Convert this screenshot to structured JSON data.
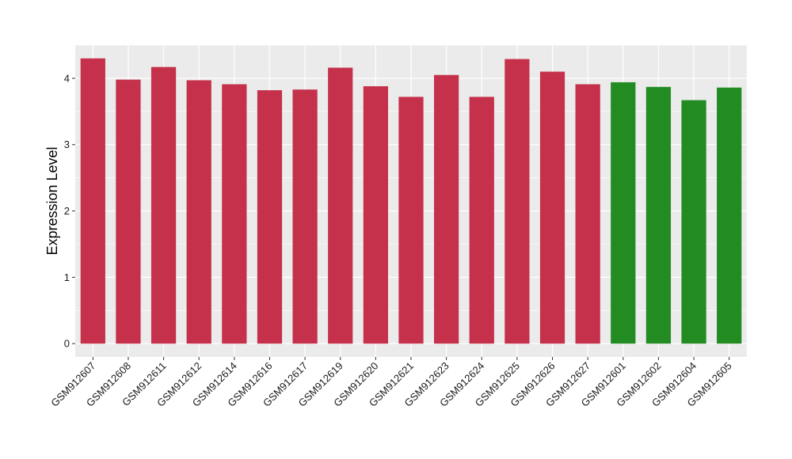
{
  "chart_data": {
    "type": "bar",
    "title": "",
    "xlabel": "",
    "ylabel": "Expression Level",
    "ylim": [
      -0.2,
      4.5
    ],
    "yticks": [
      0,
      1,
      2,
      3,
      4
    ],
    "grid": true,
    "categories": [
      "GSM912607",
      "GSM912608",
      "GSM912611",
      "GSM912612",
      "GSM912614",
      "GSM912616",
      "GSM912617",
      "GSM912619",
      "GSM912620",
      "GSM912621",
      "GSM912623",
      "GSM912624",
      "GSM912625",
      "GSM912626",
      "GSM912627",
      "GSM912601",
      "GSM912602",
      "GSM912604",
      "GSM912605"
    ],
    "values": [
      4.3,
      3.98,
      4.17,
      3.97,
      3.91,
      3.82,
      3.83,
      4.16,
      3.88,
      3.72,
      4.05,
      3.72,
      4.29,
      4.1,
      3.91,
      3.94,
      3.87,
      3.67,
      3.86
    ],
    "bar_colors": [
      "#c5314b",
      "#c5314b",
      "#c5314b",
      "#c5314b",
      "#c5314b",
      "#c5314b",
      "#c5314b",
      "#c5314b",
      "#c5314b",
      "#c5314b",
      "#c5314b",
      "#c5314b",
      "#c5314b",
      "#c5314b",
      "#c5314b",
      "#228b22",
      "#228b22",
      "#228b22",
      "#228b22"
    ],
    "panel_background": "#ebebeb",
    "gridline_color": "#ffffff"
  }
}
